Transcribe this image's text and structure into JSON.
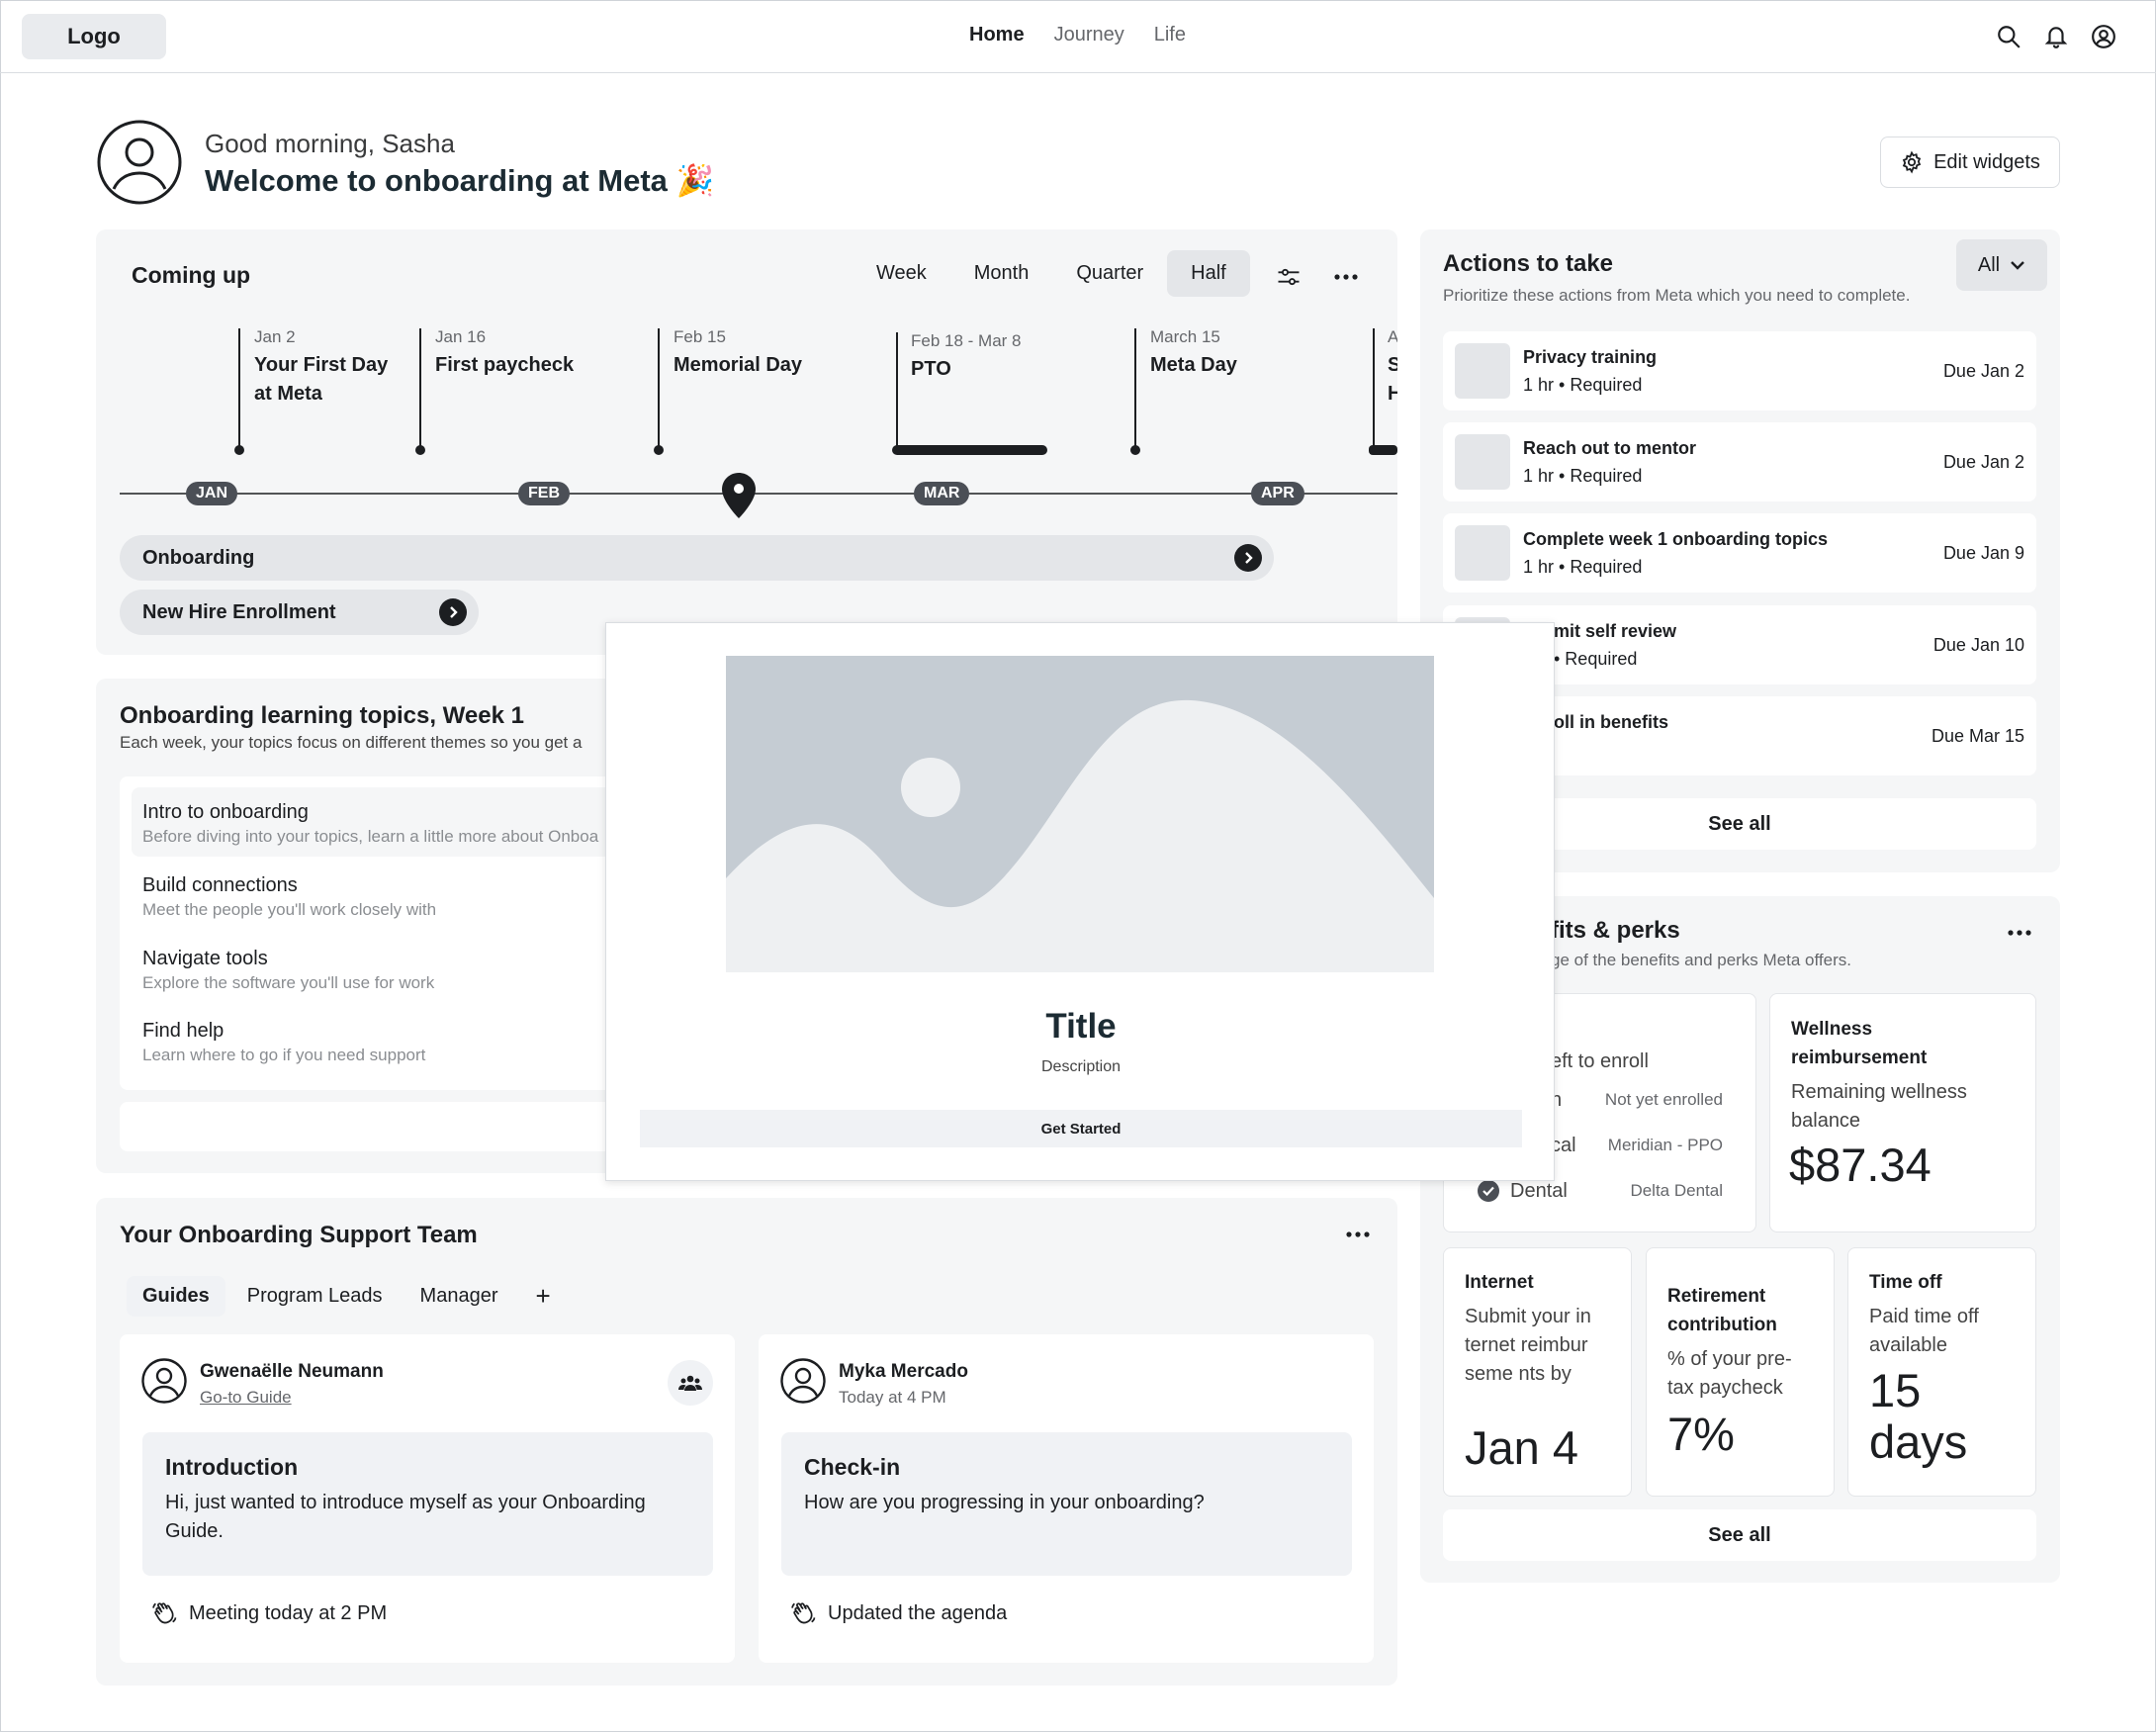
{
  "nav": {
    "logo": "Logo",
    "links": [
      "Home",
      "Journey",
      "Life"
    ]
  },
  "greeting": {
    "line1": "Good morning, Sasha",
    "line2": "Welcome to onboarding at Meta 🎉",
    "edit_widgets": "Edit widgets"
  },
  "coming_up": {
    "title": "Coming up",
    "ranges": [
      "Week",
      "Month",
      "Quarter",
      "Half"
    ],
    "selected_range": "Half",
    "events": [
      {
        "date": "Jan 2",
        "name": "Your First Day at Meta"
      },
      {
        "date": "Jan 16",
        "name": "First paycheck"
      },
      {
        "date": "Feb 15",
        "name": "Memorial Day"
      },
      {
        "date": "Feb 18 - Mar 8",
        "name": "PTO"
      },
      {
        "date": "March 15",
        "name": "Meta Day"
      },
      {
        "date": "A",
        "name": "S H"
      }
    ],
    "months": [
      "JAN",
      "FEB",
      "MAR",
      "APR"
    ],
    "bars": [
      "Onboarding",
      "New Hire Enrollment"
    ]
  },
  "learning": {
    "title": "Onboarding learning topics, Week 1",
    "subtitle": "Each week, your topics focus on different themes so you get a",
    "topics": [
      {
        "title": "Intro to onboarding",
        "desc": "Before diving into your topics, learn a little more about Onboa"
      },
      {
        "title": "Build connections",
        "desc": "Meet the people you'll work closely with"
      },
      {
        "title": "Navigate tools",
        "desc": "Explore the software you'll use for work"
      },
      {
        "title": "Find help",
        "desc": "Learn where to go if you need support"
      }
    ]
  },
  "support": {
    "title": "Your Onboarding Support Team",
    "tabs": [
      "Guides",
      "Program Leads",
      "Manager",
      "+"
    ],
    "cards": [
      {
        "name": "Gwenaëlle Neumann",
        "sub": "Go-to Guide",
        "msg_title": "Introduction",
        "msg_body": "Hi, just wanted to introduce myself as your Onboarding Guide.",
        "footer": "Meeting today at 2 PM"
      },
      {
        "name": "Myka Mercado",
        "sub": "Today at 4 PM",
        "msg_title": "Check-in",
        "msg_body": "How are you progressing in your onboarding?",
        "footer": "Updated the agenda"
      }
    ]
  },
  "actions": {
    "title": "Actions to take",
    "subtitle": "Prioritize these actions from Meta which you need to complete.",
    "filter": "All",
    "items": [
      {
        "name": "Privacy training",
        "meta": "1 hr • Required",
        "due": "Due Jan 2"
      },
      {
        "name": "Reach out to mentor",
        "meta": "1 hr • Required",
        "due": "Due Jan 2"
      },
      {
        "name": "Complete week 1 onboarding topics",
        "meta": "1 hr • Required",
        "due": "Due Jan 9"
      },
      {
        "name": "mit self review",
        "meta": "• Required",
        "due": "Due Jan 10"
      },
      {
        "name": "oll in benefits",
        "meta": "",
        "due": "Due Mar 15"
      }
    ],
    "see_all": "See all"
  },
  "benefits": {
    "title": "fits & perks",
    "subtitle": "ge of the benefits and perks Meta offers.",
    "enroll_label": "eft to enroll",
    "enroll_rows": [
      {
        "label": "n",
        "value": "Not yet enrolled"
      },
      {
        "label": "cal",
        "value": "Meridian - PPO"
      },
      {
        "label": "Dental",
        "value": "Delta Dental"
      }
    ],
    "wellness": {
      "title": "Wellness reimbursement",
      "body": "Remaining wellness balance",
      "value": "$87.34"
    },
    "internet": {
      "title": "Internet",
      "body": "Submit your internet reimburseme nts by",
      "value": "Jan 4"
    },
    "retirement": {
      "title": "Retirement contribution",
      "body": "% of your pre-tax paycheck",
      "value": "7%"
    },
    "timeoff": {
      "title": "Time off",
      "body": "Paid time off available",
      "value": "15 days"
    },
    "see_all": "See all"
  },
  "modal": {
    "title": "Title",
    "description": "Description",
    "button": "Get Started"
  }
}
